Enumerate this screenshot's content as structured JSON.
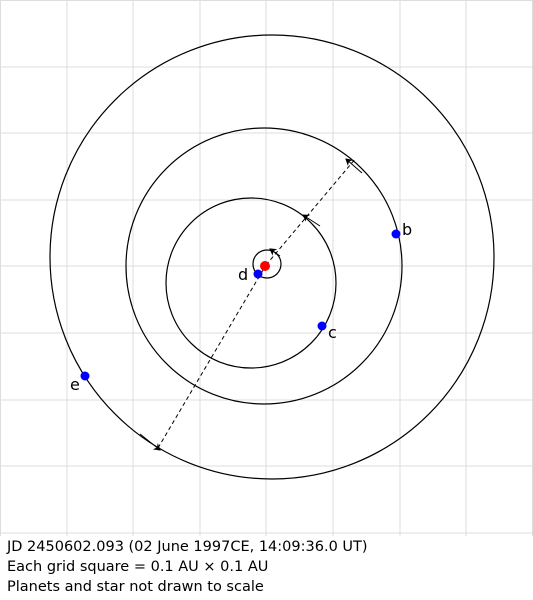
{
  "caption": {
    "line1": "JD 2450602.093 (02 June 1997CE, 14:09:36.0 UT)",
    "line2": "Each grid square = 0.1 AU × 0.1 AU",
    "line3": "Planets and star not drawn to scale"
  },
  "planets": [
    {
      "id": "b",
      "label": "b"
    },
    {
      "id": "c",
      "label": "c"
    },
    {
      "id": "d",
      "label": "d"
    },
    {
      "id": "e",
      "label": "e"
    }
  ],
  "colors": {
    "star": "#ff0000",
    "planet": "#0000ff",
    "grid": "#dddddd",
    "orbit": "#000000"
  }
}
